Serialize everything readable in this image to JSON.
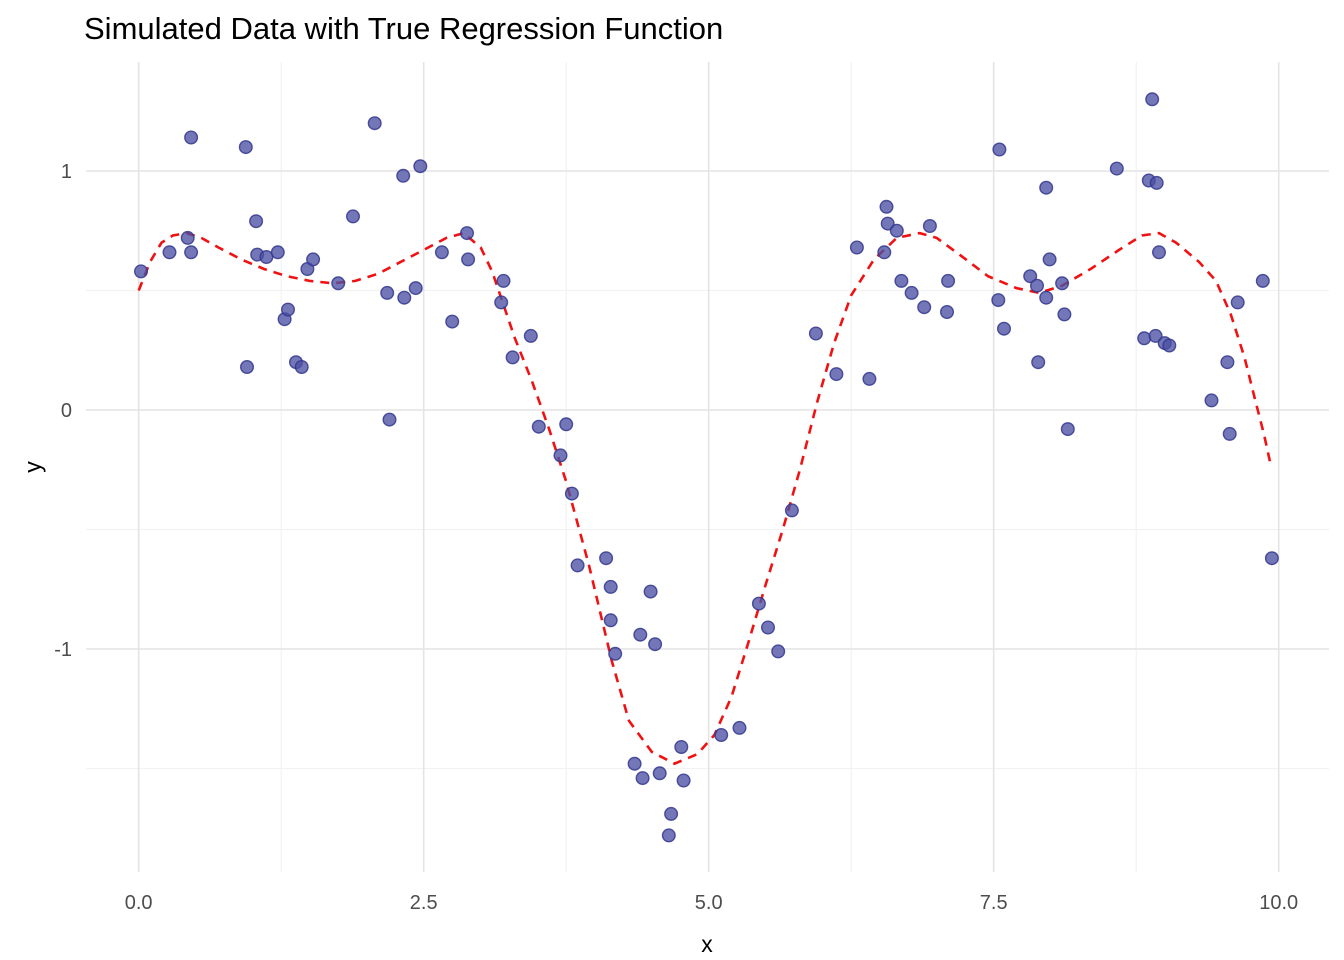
{
  "chart_data": {
    "type": "scatter",
    "title": "Simulated Data with True Regression Function",
    "xlabel": "x",
    "ylabel": "y",
    "grid": true,
    "legend": false,
    "x_axis": {
      "range": [
        -0.462,
        10.441
      ],
      "ticks": [
        {
          "v": 0,
          "label": "0.0"
        },
        {
          "v": 2.5,
          "label": "2.5"
        },
        {
          "v": 5,
          "label": "5.0"
        },
        {
          "v": 7.5,
          "label": "7.5"
        },
        {
          "v": 10,
          "label": "10.0"
        }
      ],
      "minor_ticks": [
        1.25,
        3.75,
        6.25,
        8.75
      ]
    },
    "y_axis": {
      "range": [
        -1.933,
        1.456
      ],
      "ticks": [
        {
          "v": 1,
          "label": "1"
        },
        {
          "v": 0,
          "label": "0"
        },
        {
          "v": -1,
          "label": "-1"
        }
      ],
      "minor_ticks": [
        0.5,
        -0.5,
        -1.5
      ]
    },
    "series": [
      {
        "name": "simulated-points",
        "kind": "scatter",
        "fill": "#4c50a3",
        "stroke": "#32378e",
        "fill_opacity": 0.78,
        "stroke_opacity": 0.85,
        "radius": 6.3,
        "points": [
          [
            0.02,
            0.58
          ],
          [
            0.27,
            0.66
          ],
          [
            0.43,
            0.72
          ],
          [
            0.46,
            0.66
          ],
          [
            0.46,
            1.14
          ],
          [
            0.94,
            1.1
          ],
          [
            0.95,
            0.18
          ],
          [
            1.03,
            0.79
          ],
          [
            1.04,
            0.65
          ],
          [
            1.12,
            0.64
          ],
          [
            1.22,
            0.66
          ],
          [
            1.28,
            0.38
          ],
          [
            1.31,
            0.42
          ],
          [
            1.38,
            0.2
          ],
          [
            1.43,
            0.18
          ],
          [
            1.48,
            0.59
          ],
          [
            1.53,
            0.63
          ],
          [
            1.75,
            0.53
          ],
          [
            1.88,
            0.81
          ],
          [
            2.07,
            1.2
          ],
          [
            2.18,
            0.49
          ],
          [
            2.2,
            -0.04
          ],
          [
            2.32,
            0.98
          ],
          [
            2.33,
            0.47
          ],
          [
            2.43,
            0.51
          ],
          [
            2.47,
            1.02
          ],
          [
            2.66,
            0.66
          ],
          [
            2.75,
            0.37
          ],
          [
            2.88,
            0.74
          ],
          [
            2.89,
            0.63
          ],
          [
            3.18,
            0.45
          ],
          [
            3.2,
            0.54
          ],
          [
            3.28,
            0.22
          ],
          [
            3.44,
            0.31
          ],
          [
            3.51,
            -0.07
          ],
          [
            3.7,
            -0.19
          ],
          [
            3.75,
            -0.06
          ],
          [
            3.8,
            -0.35
          ],
          [
            3.85,
            -0.65
          ],
          [
            4.1,
            -0.62
          ],
          [
            4.14,
            -0.74
          ],
          [
            4.14,
            -0.88
          ],
          [
            4.18,
            -1.02
          ],
          [
            4.35,
            -1.48
          ],
          [
            4.4,
            -0.94
          ],
          [
            4.42,
            -1.54
          ],
          [
            4.49,
            -0.76
          ],
          [
            4.53,
            -0.98
          ],
          [
            4.57,
            -1.52
          ],
          [
            4.65,
            -1.78
          ],
          [
            4.67,
            -1.69
          ],
          [
            4.76,
            -1.41
          ],
          [
            4.78,
            -1.55
          ],
          [
            5.11,
            -1.36
          ],
          [
            5.27,
            -1.33
          ],
          [
            5.44,
            -0.81
          ],
          [
            5.52,
            -0.91
          ],
          [
            5.61,
            -1.01
          ],
          [
            5.73,
            -0.42
          ],
          [
            5.94,
            0.32
          ],
          [
            6.12,
            0.15
          ],
          [
            6.3,
            0.68
          ],
          [
            6.41,
            0.13
          ],
          [
            6.54,
            0.66
          ],
          [
            6.56,
            0.85
          ],
          [
            6.57,
            0.78
          ],
          [
            6.65,
            0.75
          ],
          [
            6.69,
            0.54
          ],
          [
            6.78,
            0.49
          ],
          [
            6.89,
            0.43
          ],
          [
            6.94,
            0.77
          ],
          [
            7.09,
            0.41
          ],
          [
            7.1,
            0.54
          ],
          [
            7.54,
            0.46
          ],
          [
            7.55,
            1.09
          ],
          [
            7.59,
            0.34
          ],
          [
            7.82,
            0.56
          ],
          [
            7.88,
            0.52
          ],
          [
            7.89,
            0.2
          ],
          [
            7.96,
            0.93
          ],
          [
            7.96,
            0.47
          ],
          [
            7.99,
            0.63
          ],
          [
            8.1,
            0.53
          ],
          [
            8.12,
            0.4
          ],
          [
            8.15,
            -0.08
          ],
          [
            8.58,
            1.01
          ],
          [
            8.82,
            0.3
          ],
          [
            8.86,
            0.96
          ],
          [
            8.89,
            1.3
          ],
          [
            8.92,
            0.31
          ],
          [
            8.93,
            0.95
          ],
          [
            8.95,
            0.66
          ],
          [
            9.0,
            0.28
          ],
          [
            9.04,
            0.27
          ],
          [
            9.41,
            0.04
          ],
          [
            9.55,
            0.2
          ],
          [
            9.57,
            -0.1
          ],
          [
            9.64,
            0.45
          ],
          [
            9.86,
            0.54
          ],
          [
            9.94,
            -0.62
          ]
        ]
      },
      {
        "name": "true-regression-function",
        "kind": "line",
        "style": "dashed",
        "color": "#f01212",
        "width": 2.6,
        "dash": "9 7",
        "points": [
          [
            0.0,
            0.5
          ],
          [
            0.1,
            0.62
          ],
          [
            0.2,
            0.7
          ],
          [
            0.3,
            0.73
          ],
          [
            0.42,
            0.74
          ],
          [
            0.55,
            0.72
          ],
          [
            0.7,
            0.68
          ],
          [
            0.9,
            0.63
          ],
          [
            1.1,
            0.59
          ],
          [
            1.3,
            0.56
          ],
          [
            1.5,
            0.54
          ],
          [
            1.7,
            0.53
          ],
          [
            1.9,
            0.54
          ],
          [
            2.1,
            0.57
          ],
          [
            2.3,
            0.62
          ],
          [
            2.5,
            0.67
          ],
          [
            2.7,
            0.72
          ],
          [
            2.85,
            0.74
          ],
          [
            3.0,
            0.68
          ],
          [
            3.1,
            0.58
          ],
          [
            3.2,
            0.44
          ],
          [
            3.3,
            0.3
          ],
          [
            3.45,
            0.12
          ],
          [
            3.6,
            -0.08
          ],
          [
            3.75,
            -0.3
          ],
          [
            3.95,
            -0.65
          ],
          [
            4.15,
            -1.05
          ],
          [
            4.3,
            -1.3
          ],
          [
            4.5,
            -1.43
          ],
          [
            4.7,
            -1.48
          ],
          [
            4.9,
            -1.44
          ],
          [
            5.05,
            -1.36
          ],
          [
            5.2,
            -1.2
          ],
          [
            5.35,
            -0.97
          ],
          [
            5.5,
            -0.73
          ],
          [
            5.65,
            -0.5
          ],
          [
            5.8,
            -0.25
          ],
          [
            5.95,
            0.03
          ],
          [
            6.1,
            0.28
          ],
          [
            6.25,
            0.48
          ],
          [
            6.45,
            0.63
          ],
          [
            6.65,
            0.72
          ],
          [
            6.85,
            0.74
          ],
          [
            7.0,
            0.72
          ],
          [
            7.2,
            0.65
          ],
          [
            7.45,
            0.56
          ],
          [
            7.7,
            0.51
          ],
          [
            7.9,
            0.49
          ],
          [
            8.1,
            0.52
          ],
          [
            8.35,
            0.59
          ],
          [
            8.6,
            0.67
          ],
          [
            8.8,
            0.73
          ],
          [
            8.95,
            0.74
          ],
          [
            9.1,
            0.7
          ],
          [
            9.3,
            0.62
          ],
          [
            9.45,
            0.54
          ],
          [
            9.58,
            0.4
          ],
          [
            9.7,
            0.22
          ],
          [
            9.8,
            0.03
          ],
          [
            9.87,
            -0.1
          ],
          [
            9.93,
            -0.23
          ]
        ]
      }
    ],
    "grid_colors": {
      "major": "#e4e4e4",
      "minor": "#f2f2f2"
    },
    "tick_label_color": "#4d4d4d"
  }
}
